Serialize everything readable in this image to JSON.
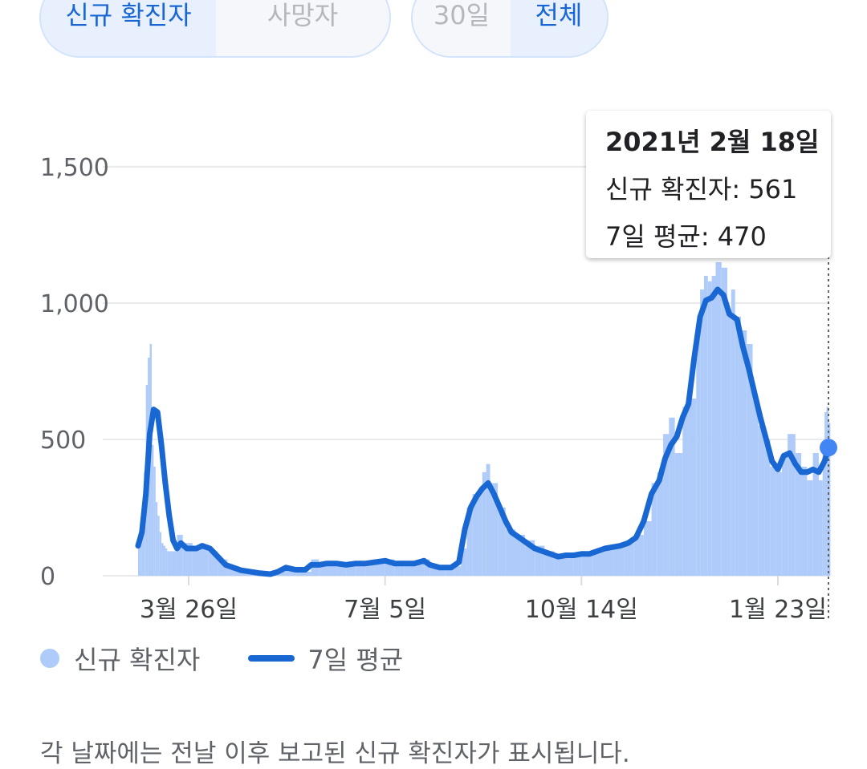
{
  "tabs": {
    "metric": [
      {
        "label": "신규 확진자",
        "active": true
      },
      {
        "label": "사망자",
        "active": false
      }
    ],
    "range": [
      {
        "label": "30일",
        "active": false
      },
      {
        "label": "전체",
        "active": true
      }
    ]
  },
  "tooltip": {
    "date": "2021년 2월 18일",
    "cases_line": "신규 확진자: 561",
    "avg_line": "7일 평균: 470"
  },
  "legend": {
    "cases": "신규 확진자",
    "avg": "7일 평균"
  },
  "footnote": "각 날짜에는 전날 이후 보고된 신규 확진자가 표시됩니다.",
  "colors": {
    "bars": "#aecbfa",
    "avg_line": "#1967d2",
    "highlight_dot": "#4285f4",
    "grid": "#e8eaed"
  },
  "chart_data": {
    "type": "bar",
    "x_range": [
      "2020-02-29",
      "2021-02-18"
    ],
    "x_ticks": [
      {
        "date": "2020-03-26",
        "label": "3월 26일"
      },
      {
        "date": "2020-07-05",
        "label": "7월 5일"
      },
      {
        "date": "2020-10-14",
        "label": "10월 14일"
      },
      {
        "date": "2021-01-23",
        "label": "1월 23일"
      }
    ],
    "ylim": [
      0,
      1500
    ],
    "y_ticks": [
      {
        "value": 0,
        "label": "0"
      },
      {
        "value": 500,
        "label": "500"
      },
      {
        "value": 1000,
        "label": "1,000"
      },
      {
        "value": 1500,
        "label": "1,500"
      }
    ],
    "grid": true,
    "legend_position": "bottom-left",
    "series": [
      {
        "name": "신규 확진자",
        "type": "bar",
        "points": [
          [
            "2020-02-29",
            120
          ],
          [
            "2020-03-01",
            160
          ],
          [
            "2020-03-02",
            220
          ],
          [
            "2020-03-03",
            380
          ],
          [
            "2020-03-04",
            700
          ],
          [
            "2020-03-05",
            800
          ],
          [
            "2020-03-06",
            850
          ],
          [
            "2020-03-07",
            480
          ],
          [
            "2020-03-08",
            400
          ],
          [
            "2020-03-09",
            270
          ],
          [
            "2020-03-10",
            220
          ],
          [
            "2020-03-11",
            160
          ],
          [
            "2020-03-12",
            120
          ],
          [
            "2020-03-13",
            110
          ],
          [
            "2020-03-14",
            100
          ],
          [
            "2020-03-15",
            90
          ],
          [
            "2020-03-20",
            150
          ],
          [
            "2020-03-23",
            120
          ],
          [
            "2020-03-28",
            110
          ],
          [
            "2020-04-01",
            100
          ],
          [
            "2020-04-05",
            90
          ],
          [
            "2020-04-10",
            60
          ],
          [
            "2020-04-15",
            35
          ],
          [
            "2020-04-20",
            20
          ],
          [
            "2020-04-25",
            15
          ],
          [
            "2020-05-01",
            10
          ],
          [
            "2020-05-06",
            8
          ],
          [
            "2020-05-10",
            20
          ],
          [
            "2020-05-15",
            25
          ],
          [
            "2020-05-20",
            20
          ],
          [
            "2020-05-25",
            15
          ],
          [
            "2020-05-28",
            60
          ],
          [
            "2020-06-01",
            35
          ],
          [
            "2020-06-05",
            50
          ],
          [
            "2020-06-10",
            45
          ],
          [
            "2020-06-15",
            40
          ],
          [
            "2020-06-20",
            50
          ],
          [
            "2020-06-25",
            45
          ],
          [
            "2020-06-30",
            50
          ],
          [
            "2020-07-05",
            60
          ],
          [
            "2020-07-10",
            55
          ],
          [
            "2020-07-15",
            50
          ],
          [
            "2020-07-20",
            45
          ],
          [
            "2020-07-25",
            60
          ],
          [
            "2020-07-28",
            30
          ],
          [
            "2020-08-01",
            30
          ],
          [
            "2020-08-05",
            35
          ],
          [
            "2020-08-10",
            35
          ],
          [
            "2020-08-13",
            100
          ],
          [
            "2020-08-16",
            250
          ],
          [
            "2020-08-19",
            300
          ],
          [
            "2020-08-22",
            320
          ],
          [
            "2020-08-24",
            380
          ],
          [
            "2020-08-26",
            410
          ],
          [
            "2020-08-28",
            340
          ],
          [
            "2020-09-01",
            250
          ],
          [
            "2020-09-05",
            170
          ],
          [
            "2020-09-10",
            150
          ],
          [
            "2020-09-15",
            130
          ],
          [
            "2020-09-20",
            110
          ],
          [
            "2020-09-25",
            90
          ],
          [
            "2020-09-30",
            70
          ],
          [
            "2020-10-05",
            70
          ],
          [
            "2020-10-10",
            80
          ],
          [
            "2020-10-14",
            80
          ],
          [
            "2020-10-20",
            90
          ],
          [
            "2020-10-25",
            100
          ],
          [
            "2020-10-30",
            110
          ],
          [
            "2020-11-05",
            120
          ],
          [
            "2020-11-10",
            150
          ],
          [
            "2020-11-15",
            200
          ],
          [
            "2020-11-19",
            340
          ],
          [
            "2020-11-22",
            380
          ],
          [
            "2020-11-25",
            520
          ],
          [
            "2020-11-28",
            580
          ],
          [
            "2020-12-01",
            450
          ],
          [
            "2020-12-05",
            620
          ],
          [
            "2020-12-08",
            650
          ],
          [
            "2020-12-12",
            900
          ],
          [
            "2020-12-14",
            1050
          ],
          [
            "2020-12-16",
            1100
          ],
          [
            "2020-12-18",
            1080
          ],
          [
            "2020-12-20",
            1100
          ],
          [
            "2020-12-22",
            1150
          ],
          [
            "2020-12-25",
            1130
          ],
          [
            "2020-12-28",
            970
          ],
          [
            "2020-12-30",
            1050
          ],
          [
            "2021-01-01",
            950
          ],
          [
            "2021-01-04",
            900
          ],
          [
            "2021-01-07",
            850
          ],
          [
            "2021-01-10",
            650
          ],
          [
            "2021-01-13",
            550
          ],
          [
            "2021-01-16",
            500
          ],
          [
            "2021-01-19",
            400
          ],
          [
            "2021-01-22",
            380
          ],
          [
            "2021-01-25",
            450
          ],
          [
            "2021-01-28",
            520
          ],
          [
            "2021-02-01",
            450
          ],
          [
            "2021-02-04",
            400
          ],
          [
            "2021-02-07",
            350
          ],
          [
            "2021-02-10",
            450
          ],
          [
            "2021-02-13",
            350
          ],
          [
            "2021-02-15",
            450
          ],
          [
            "2021-02-16",
            600
          ],
          [
            "2021-02-17",
            620
          ],
          [
            "2021-02-18",
            561
          ]
        ]
      },
      {
        "name": "7일 평균",
        "type": "line",
        "points": [
          [
            "2020-02-29",
            110
          ],
          [
            "2020-03-02",
            160
          ],
          [
            "2020-03-04",
            300
          ],
          [
            "2020-03-06",
            520
          ],
          [
            "2020-03-08",
            610
          ],
          [
            "2020-03-10",
            600
          ],
          [
            "2020-03-12",
            480
          ],
          [
            "2020-03-14",
            340
          ],
          [
            "2020-03-16",
            220
          ],
          [
            "2020-03-18",
            130
          ],
          [
            "2020-03-20",
            100
          ],
          [
            "2020-03-22",
            120
          ],
          [
            "2020-03-25",
            100
          ],
          [
            "2020-03-30",
            100
          ],
          [
            "2020-04-02",
            110
          ],
          [
            "2020-04-06",
            100
          ],
          [
            "2020-04-10",
            70
          ],
          [
            "2020-04-14",
            40
          ],
          [
            "2020-04-18",
            30
          ],
          [
            "2020-04-22",
            20
          ],
          [
            "2020-05-01",
            10
          ],
          [
            "2020-05-07",
            6
          ],
          [
            "2020-05-11",
            15
          ],
          [
            "2020-05-15",
            30
          ],
          [
            "2020-05-20",
            22
          ],
          [
            "2020-05-25",
            22
          ],
          [
            "2020-05-28",
            40
          ],
          [
            "2020-06-01",
            40
          ],
          [
            "2020-06-05",
            45
          ],
          [
            "2020-06-10",
            45
          ],
          [
            "2020-06-15",
            40
          ],
          [
            "2020-06-20",
            45
          ],
          [
            "2020-06-25",
            45
          ],
          [
            "2020-06-30",
            50
          ],
          [
            "2020-07-05",
            55
          ],
          [
            "2020-07-10",
            45
          ],
          [
            "2020-07-15",
            45
          ],
          [
            "2020-07-20",
            45
          ],
          [
            "2020-07-25",
            55
          ],
          [
            "2020-07-28",
            40
          ],
          [
            "2020-08-02",
            30
          ],
          [
            "2020-08-08",
            30
          ],
          [
            "2020-08-12",
            50
          ],
          [
            "2020-08-15",
            170
          ],
          [
            "2020-08-18",
            250
          ],
          [
            "2020-08-21",
            290
          ],
          [
            "2020-08-24",
            320
          ],
          [
            "2020-08-27",
            340
          ],
          [
            "2020-08-30",
            300
          ],
          [
            "2020-09-02",
            250
          ],
          [
            "2020-09-05",
            200
          ],
          [
            "2020-09-08",
            160
          ],
          [
            "2020-09-12",
            140
          ],
          [
            "2020-09-16",
            120
          ],
          [
            "2020-09-20",
            100
          ],
          [
            "2020-09-24",
            90
          ],
          [
            "2020-09-28",
            80
          ],
          [
            "2020-10-02",
            70
          ],
          [
            "2020-10-06",
            75
          ],
          [
            "2020-10-10",
            75
          ],
          [
            "2020-10-14",
            80
          ],
          [
            "2020-10-18",
            80
          ],
          [
            "2020-10-22",
            90
          ],
          [
            "2020-10-26",
            100
          ],
          [
            "2020-10-30",
            105
          ],
          [
            "2020-11-03",
            110
          ],
          [
            "2020-11-07",
            120
          ],
          [
            "2020-11-11",
            140
          ],
          [
            "2020-11-15",
            200
          ],
          [
            "2020-11-19",
            300
          ],
          [
            "2020-11-23",
            350
          ],
          [
            "2020-11-26",
            430
          ],
          [
            "2020-11-29",
            480
          ],
          [
            "2020-12-02",
            510
          ],
          [
            "2020-12-05",
            580
          ],
          [
            "2020-12-08",
            630
          ],
          [
            "2020-12-11",
            800
          ],
          [
            "2020-12-14",
            950
          ],
          [
            "2020-12-17",
            1010
          ],
          [
            "2020-12-20",
            1020
          ],
          [
            "2020-12-23",
            1050
          ],
          [
            "2020-12-26",
            1030
          ],
          [
            "2020-12-29",
            960
          ],
          [
            "2021-01-02",
            940
          ],
          [
            "2021-01-05",
            840
          ],
          [
            "2021-01-08",
            760
          ],
          [
            "2021-01-11",
            670
          ],
          [
            "2021-01-14",
            580
          ],
          [
            "2021-01-17",
            500
          ],
          [
            "2021-01-20",
            420
          ],
          [
            "2021-01-23",
            390
          ],
          [
            "2021-01-26",
            440
          ],
          [
            "2021-01-29",
            450
          ],
          [
            "2021-02-01",
            410
          ],
          [
            "2021-02-04",
            380
          ],
          [
            "2021-02-07",
            380
          ],
          [
            "2021-02-10",
            390
          ],
          [
            "2021-02-13",
            380
          ],
          [
            "2021-02-16",
            420
          ],
          [
            "2021-02-18",
            470
          ]
        ]
      }
    ]
  }
}
